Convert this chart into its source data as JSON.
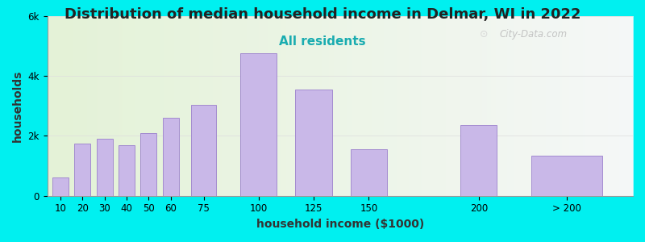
{
  "title": "Distribution of median household income in Delmar, WI in 2022",
  "subtitle": "All residents",
  "xlabel": "household income ($1000)",
  "ylabel": "households",
  "bar_labels": [
    "10",
    "20",
    "30",
    "40",
    "50",
    "60",
    "75",
    "100",
    "125",
    "150",
    "200",
    "> 200"
  ],
  "bar_positions": [
    10,
    20,
    30,
    40,
    50,
    60,
    75,
    100,
    125,
    150,
    200,
    240
  ],
  "bar_widths": [
    8,
    8,
    8,
    8,
    8,
    8,
    12,
    18,
    18,
    18,
    18,
    35
  ],
  "bar_values": [
    600,
    1750,
    1900,
    1700,
    2100,
    2600,
    3050,
    4750,
    3550,
    1550,
    2350,
    1350
  ],
  "bar_color": "#c9b8e8",
  "bar_edgecolor": "#9b80cc",
  "background_outer": "#00f0f0",
  "plot_bg_color": "#f0f8e8",
  "ylim": [
    0,
    6000
  ],
  "yticks": [
    0,
    2000,
    4000,
    6000
  ],
  "ytick_labels": [
    "0",
    "2k",
    "4k",
    "6k"
  ],
  "title_fontsize": 13,
  "subtitle_fontsize": 11,
  "subtitle_color": "#1aacb0",
  "axis_label_fontsize": 10,
  "tick_fontsize": 8.5,
  "watermark_text": "City-Data.com",
  "plot_xlim": [
    4,
    270
  ],
  "xtick_positions": [
    10,
    20,
    30,
    40,
    50,
    60,
    75,
    100,
    125,
    150,
    200,
    240
  ],
  "xtick_labels": [
    "10",
    "20",
    "30",
    "40",
    "50",
    "60",
    "75",
    "100",
    "125",
    "150",
    "200",
    "> 200"
  ]
}
